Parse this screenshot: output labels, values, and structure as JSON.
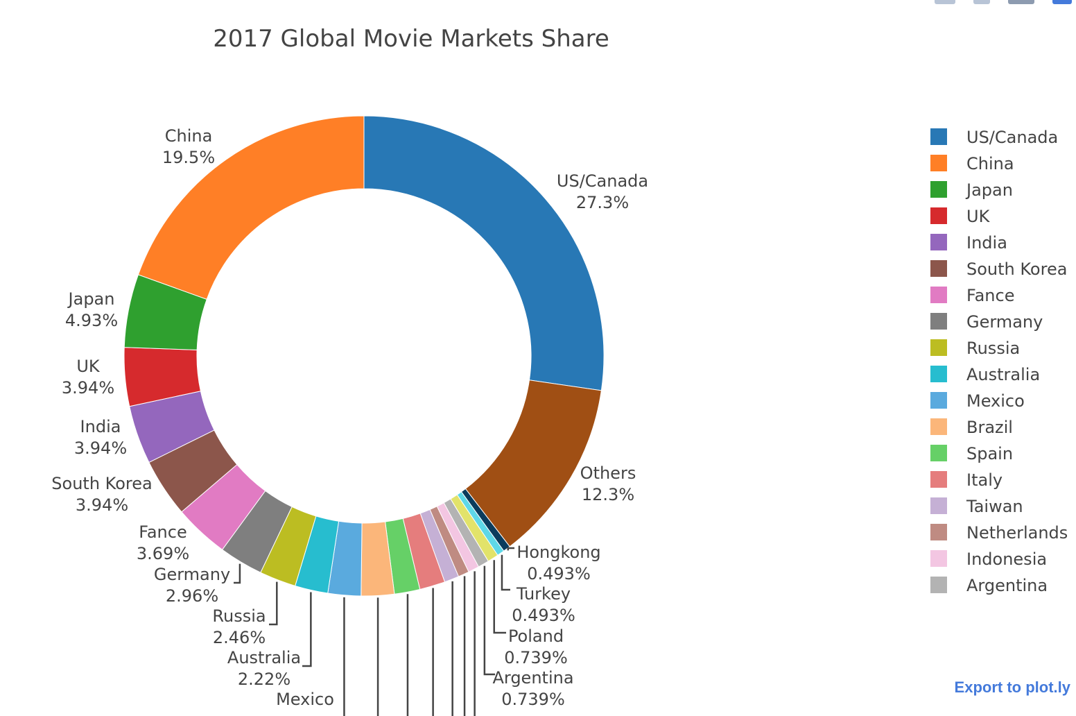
{
  "toolbar": {
    "export_label": "Export to plot.ly",
    "buttons": [
      "camera-icon",
      "save-icon",
      "zoom-icon",
      "plotly-logo-icon"
    ]
  },
  "chart_data": {
    "type": "pie",
    "hole": true,
    "title": "2017 Global Movie Markets Share",
    "slices": [
      {
        "label": "US/Canada",
        "value": 27.3,
        "color": "#2878b5",
        "text": "27.3%",
        "in_legend": true
      },
      {
        "label": "Others",
        "value": 12.3,
        "color": "#a04f14",
        "text": "12.3%",
        "in_legend": false
      },
      {
        "label": "Hongkong",
        "value": 0.493,
        "color": "#0b3c5d",
        "text": "0.493%",
        "in_legend": false
      },
      {
        "label": "Turkey",
        "value": 0.493,
        "color": "#5ed8e8",
        "text": "0.493%",
        "in_legend": false
      },
      {
        "label": "Poland",
        "value": 0.739,
        "color": "#e2e36a",
        "text": "0.739%",
        "in_legend": false
      },
      {
        "label": "Argentina",
        "value": 0.739,
        "color": "#b3b3b3",
        "text": "0.739%",
        "in_legend": true
      },
      {
        "label": "Indonesia",
        "value": 0.739,
        "color": "#f3c6e2",
        "text": "",
        "in_legend": true
      },
      {
        "label": "Netherlands",
        "value": 0.739,
        "color": "#bf8b82",
        "text": "",
        "in_legend": true
      },
      {
        "label": "Taiwan",
        "value": 0.985,
        "color": "#c5b0d5",
        "text": "",
        "in_legend": true
      },
      {
        "label": "Italy",
        "value": 1.72,
        "color": "#e57d7d",
        "text": "",
        "in_legend": true
      },
      {
        "label": "Spain",
        "value": 1.72,
        "color": "#66d067",
        "text": "",
        "in_legend": true
      },
      {
        "label": "Brazil",
        "value": 2.22,
        "color": "#fbb67a",
        "text": "",
        "in_legend": true
      },
      {
        "label": "Mexico",
        "value": 2.22,
        "color": "#5aaade",
        "text": "",
        "in_legend": true
      },
      {
        "label": "Australia",
        "value": 2.22,
        "color": "#27bdcf",
        "text": "2.22%",
        "in_legend": true
      },
      {
        "label": "Russia",
        "value": 2.46,
        "color": "#bcbd22",
        "text": "2.46%",
        "in_legend": true
      },
      {
        "label": "Germany",
        "value": 2.96,
        "color": "#7f7f7f",
        "text": "2.96%",
        "in_legend": true
      },
      {
        "label": "Fance",
        "value": 3.69,
        "color": "#e17bc3",
        "text": "3.69%",
        "in_legend": true
      },
      {
        "label": "South Korea",
        "value": 3.94,
        "color": "#8c564b",
        "text": "3.94%",
        "in_legend": true
      },
      {
        "label": "India",
        "value": 3.94,
        "color": "#9467bd",
        "text": "3.94%",
        "in_legend": true
      },
      {
        "label": "UK",
        "value": 3.94,
        "color": "#d62a2d",
        "text": "3.94%",
        "in_legend": true
      },
      {
        "label": "Japan",
        "value": 4.93,
        "color": "#2fa02f",
        "text": "4.93%",
        "in_legend": true
      },
      {
        "label": "China",
        "value": 19.5,
        "color": "#ff7f26",
        "text": "19.5%",
        "in_legend": true
      }
    ],
    "legend": {
      "placement": "right",
      "entries": [
        "US/Canada",
        "China",
        "Japan",
        "UK",
        "India",
        "South Korea",
        "Fance",
        "Germany",
        "Russia",
        "Australia",
        "Mexico",
        "Brazil",
        "Spain",
        "Italy",
        "Taiwan",
        "Netherlands",
        "Indonesia",
        "Argentina"
      ]
    }
  }
}
